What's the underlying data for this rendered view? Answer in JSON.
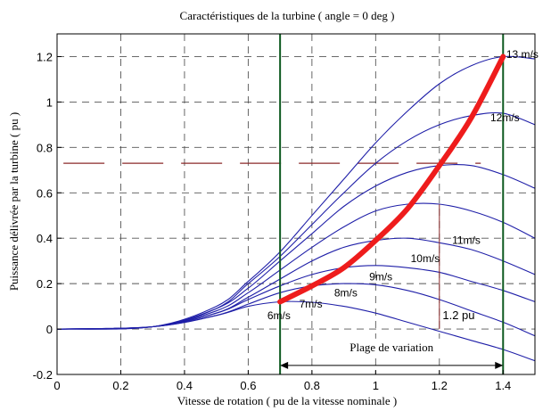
{
  "chart_data": {
    "type": "line",
    "title": "Caractéristiques de la turbine  ( angle = 0 deg )",
    "xlabel": "Vitesse de rotation ( pu de la vitesse nominale )",
    "ylabel": "Puissance délivrée par la turbine ( pu )",
    "xlim": [
      0,
      1.5
    ],
    "ylim": [
      -0.2,
      1.3
    ],
    "x_ticks": [
      0,
      0.2,
      0.4,
      0.6,
      0.8,
      1,
      1.2,
      1.4
    ],
    "x_tick_labels": [
      "0",
      "0.2",
      "0.4",
      "0.6",
      "0.8",
      "1",
      "1.2",
      "1.4"
    ],
    "y_ticks": [
      -0.2,
      0,
      0.2,
      0.4,
      0.6,
      0.8,
      1,
      1.2
    ],
    "y_tick_labels": [
      "-0.2",
      "0",
      "0.2",
      "0.4",
      "0.6",
      "0.8",
      "1",
      "1.2"
    ],
    "grid": true,
    "colors": {
      "curves": "#1f1fa8",
      "optimal_path": "#ee1c1c",
      "limit_lines": "#0e5a20",
      "reference_dash": "#8b2a2a",
      "grid": "#555555"
    },
    "series": [
      {
        "name": "6m/s",
        "x": [
          0,
          0.3,
          0.5,
          0.6,
          0.7,
          0.8,
          0.9,
          1.0,
          1.1,
          1.2,
          1.3,
          1.4,
          1.5
        ],
        "y": [
          0,
          0.01,
          0.06,
          0.1,
          0.12,
          0.118,
          0.1,
          0.07,
          0.03,
          -0.01,
          -0.05,
          -0.09,
          -0.14
        ]
      },
      {
        "name": "7m/s",
        "x": [
          0,
          0.3,
          0.5,
          0.6,
          0.7,
          0.8,
          0.9,
          1.0,
          1.1,
          1.2,
          1.3,
          1.4,
          1.5
        ],
        "y": [
          0,
          0.01,
          0.06,
          0.11,
          0.16,
          0.19,
          0.2,
          0.195,
          0.17,
          0.13,
          0.08,
          0.03,
          -0.03
        ]
      },
      {
        "name": "8m/s",
        "x": [
          0,
          0.3,
          0.5,
          0.6,
          0.7,
          0.8,
          0.9,
          1.0,
          1.1,
          1.2,
          1.3,
          1.4,
          1.5
        ],
        "y": [
          0,
          0.01,
          0.07,
          0.13,
          0.19,
          0.24,
          0.27,
          0.28,
          0.27,
          0.25,
          0.21,
          0.17,
          0.12
        ]
      },
      {
        "name": "9m/s",
        "x": [
          0,
          0.3,
          0.5,
          0.6,
          0.7,
          0.8,
          0.9,
          1.0,
          1.1,
          1.2,
          1.3,
          1.4,
          1.5
        ],
        "y": [
          0,
          0.01,
          0.07,
          0.14,
          0.22,
          0.3,
          0.36,
          0.39,
          0.4,
          0.38,
          0.35,
          0.3,
          0.24
        ]
      },
      {
        "name": "10m/s",
        "x": [
          0,
          0.3,
          0.5,
          0.6,
          0.7,
          0.8,
          0.9,
          1.0,
          1.1,
          1.2,
          1.3,
          1.4,
          1.5
        ],
        "y": [
          0,
          0.01,
          0.08,
          0.16,
          0.26,
          0.36,
          0.45,
          0.52,
          0.55,
          0.55,
          0.52,
          0.47,
          0.4
        ]
      },
      {
        "name": "11m/s",
        "x": [
          0,
          0.3,
          0.5,
          0.6,
          0.7,
          0.8,
          0.9,
          1.0,
          1.1,
          1.2,
          1.3,
          1.4,
          1.5
        ],
        "y": [
          0,
          0.01,
          0.09,
          0.18,
          0.3,
          0.42,
          0.54,
          0.63,
          0.69,
          0.72,
          0.72,
          0.68,
          0.62
        ]
      },
      {
        "name": "12m/s",
        "x": [
          0,
          0.3,
          0.5,
          0.6,
          0.7,
          0.8,
          0.9,
          1.0,
          1.1,
          1.2,
          1.3,
          1.4,
          1.5
        ],
        "y": [
          0,
          0.01,
          0.09,
          0.2,
          0.32,
          0.46,
          0.6,
          0.73,
          0.83,
          0.9,
          0.94,
          0.95,
          0.9
        ]
      },
      {
        "name": "13m/s",
        "x": [
          0,
          0.3,
          0.5,
          0.6,
          0.7,
          0.8,
          0.9,
          1.0,
          1.1,
          1.2,
          1.3,
          1.4,
          1.5
        ],
        "y": [
          0,
          0.01,
          0.1,
          0.21,
          0.34,
          0.5,
          0.66,
          0.82,
          0.96,
          1.08,
          1.16,
          1.2,
          1.19
        ]
      }
    ],
    "curve_labels": [
      {
        "text": "6m/s",
        "x": 0.66,
        "y": 0.06
      },
      {
        "text": "7m/s",
        "x": 0.76,
        "y": 0.11
      },
      {
        "text": "8m/s",
        "x": 0.87,
        "y": 0.16
      },
      {
        "text": "9m/s",
        "x": 0.98,
        "y": 0.23
      },
      {
        "text": "10m/s",
        "x": 1.11,
        "y": 0.31
      },
      {
        "text": "11m/s",
        "x": 1.24,
        "y": 0.39
      },
      {
        "text": "12m/s",
        "x": 1.36,
        "y": 0.93
      },
      {
        "text": "13 m/s",
        "x": 1.41,
        "y": 1.21
      }
    ],
    "optimal_path": {
      "x": [
        0.7,
        0.8,
        0.9,
        1.0,
        1.1,
        1.2,
        1.3,
        1.4
      ],
      "y": [
        0.12,
        0.19,
        0.27,
        0.39,
        0.53,
        0.72,
        0.93,
        1.2
      ]
    },
    "limit_lines_x": [
      0.7,
      1.4
    ],
    "reference_level_y": 0.73,
    "marker": {
      "x": 1.2,
      "y_from": 0,
      "y_to": 0.55
    },
    "annotations": {
      "pu_label": {
        "text": "1.2 pu",
        "x": 1.21,
        "y": 0.02
      },
      "range_label": {
        "text": "Plage de variation",
        "x_from": 0.7,
        "x_to": 1.4,
        "y": -0.16
      }
    }
  }
}
